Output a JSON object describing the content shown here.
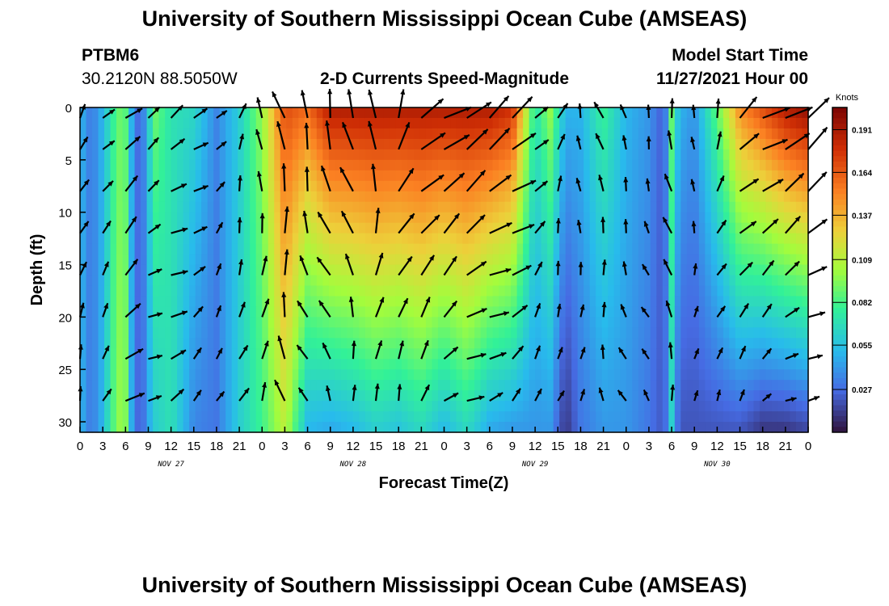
{
  "page": {
    "title": "University of Southern Mississippi Ocean Cube (AMSEAS)",
    "footer_title": "University of Southern Mississippi Ocean Cube (AMSEAS)"
  },
  "station": {
    "id": "PTBM6",
    "coords": "30.2120N  88.5050W"
  },
  "model": {
    "label": "Model Start Time",
    "start": "11/27/2021 Hour 00"
  },
  "chart_data": {
    "type": "heatmap",
    "title": "2-D Currents Speed-Magnitude",
    "xlabel": "Forecast Time(Z)",
    "ylabel": "Depth (ft)",
    "x_range_hours": [
      0,
      96
    ],
    "ylim": [
      31,
      0
    ],
    "x_tick_labels": [
      "0",
      "3",
      "6",
      "9",
      "12",
      "15",
      "18",
      "21",
      "0",
      "3",
      "6",
      "9",
      "12",
      "15",
      "18",
      "21",
      "0",
      "3",
      "6",
      "9",
      "12",
      "15",
      "18",
      "21",
      "0",
      "3",
      "6",
      "9",
      "12",
      "15",
      "18",
      "21",
      "0"
    ],
    "x_tick_hours": [
      0,
      3,
      6,
      9,
      12,
      15,
      18,
      21,
      24,
      27,
      30,
      33,
      36,
      39,
      42,
      45,
      48,
      51,
      54,
      57,
      60,
      63,
      66,
      69,
      72,
      75,
      78,
      81,
      84,
      87,
      90,
      93,
      96
    ],
    "date_labels": [
      {
        "text": "NOV 27",
        "hour": 12
      },
      {
        "text": "NOV 28",
        "hour": 36
      },
      {
        "text": "NOV 29",
        "hour": 60
      },
      {
        "text": "NOV 30",
        "hour": 84
      }
    ],
    "y_ticks": [
      0,
      5,
      10,
      15,
      20,
      25,
      30
    ],
    "colorbar": {
      "unit": "Knots",
      "ticks": [
        "0.191",
        "0.164",
        "0.137",
        "0.109",
        "0.082",
        "0.055",
        "0.027"
      ],
      "min": 0.0,
      "max": 0.205
    },
    "vector_depths_ft": [
      1,
      4,
      8,
      12,
      16,
      20,
      24,
      28
    ],
    "vector_hours": [
      0,
      3,
      6,
      9,
      12,
      15,
      18,
      21,
      24,
      27,
      30,
      33,
      36,
      39,
      42,
      45,
      48,
      51,
      54,
      57,
      60,
      63,
      66,
      69,
      72,
      75,
      78,
      81,
      84,
      87,
      90,
      93,
      96
    ],
    "time_profile": [
      {
        "hour": 0,
        "surface": 0.05,
        "bottom": 0.05
      },
      {
        "hour": 1.5,
        "surface": 0.03,
        "bottom": 0.03
      },
      {
        "hour": 3,
        "surface": 0.05,
        "bottom": 0.05
      },
      {
        "hour": 5,
        "surface": 0.09,
        "bottom": 0.1
      },
      {
        "hour": 6,
        "surface": 0.085,
        "bottom": 0.095
      },
      {
        "hour": 7,
        "surface": 0.04,
        "bottom": 0.035
      },
      {
        "hour": 8,
        "surface": 0.02,
        "bottom": 0.02
      },
      {
        "hour": 9,
        "surface": 0.06,
        "bottom": 0.045
      },
      {
        "hour": 10,
        "surface": 0.09,
        "bottom": 0.06
      },
      {
        "hour": 12,
        "surface": 0.07,
        "bottom": 0.07
      },
      {
        "hour": 15,
        "surface": 0.065,
        "bottom": 0.035
      },
      {
        "hour": 18,
        "surface": 0.035,
        "bottom": 0.03
      },
      {
        "hour": 21,
        "surface": 0.06,
        "bottom": 0.06
      },
      {
        "hour": 24,
        "surface": 0.1,
        "bottom": 0.08
      },
      {
        "hour": 27,
        "surface": 0.17,
        "bottom": 0.11
      },
      {
        "hour": 30,
        "surface": 0.16,
        "bottom": 0.05
      },
      {
        "hour": 33,
        "surface": 0.19,
        "bottom": 0.045
      },
      {
        "hour": 36,
        "surface": 0.19,
        "bottom": 0.05
      },
      {
        "hour": 39,
        "surface": 0.19,
        "bottom": 0.06
      },
      {
        "hour": 42,
        "surface": 0.19,
        "bottom": 0.055
      },
      {
        "hour": 45,
        "surface": 0.19,
        "bottom": 0.065
      },
      {
        "hour": 48,
        "surface": 0.19,
        "bottom": 0.05
      },
      {
        "hour": 51,
        "surface": 0.19,
        "bottom": 0.065
      },
      {
        "hour": 54,
        "surface": 0.19,
        "bottom": 0.045
      },
      {
        "hour": 57,
        "surface": 0.18,
        "bottom": 0.04
      },
      {
        "hour": 60,
        "surface": 0.07,
        "bottom": 0.04
      },
      {
        "hour": 62,
        "surface": 0.1,
        "bottom": 0.04
      },
      {
        "hour": 64,
        "surface": 0.05,
        "bottom": 0.01
      },
      {
        "hour": 66,
        "surface": 0.05,
        "bottom": 0.03
      },
      {
        "hour": 69,
        "surface": 0.08,
        "bottom": 0.04
      },
      {
        "hour": 72,
        "surface": 0.05,
        "bottom": 0.04
      },
      {
        "hour": 75,
        "surface": 0.04,
        "bottom": 0.03
      },
      {
        "hour": 77,
        "surface": 0.02,
        "bottom": 0.02
      },
      {
        "hour": 78,
        "surface": 0.09,
        "bottom": 0.06
      },
      {
        "hour": 79,
        "surface": 0.05,
        "bottom": 0.02
      },
      {
        "hour": 81,
        "surface": 0.04,
        "bottom": 0.02
      },
      {
        "hour": 84,
        "surface": 0.09,
        "bottom": 0.02
      },
      {
        "hour": 87,
        "surface": 0.15,
        "bottom": 0.02
      },
      {
        "hour": 90,
        "surface": 0.17,
        "bottom": 0.01
      },
      {
        "hour": 93,
        "surface": 0.19,
        "bottom": 0.01
      },
      {
        "hour": 96,
        "surface": 0.2,
        "bottom": 0.015
      }
    ]
  }
}
